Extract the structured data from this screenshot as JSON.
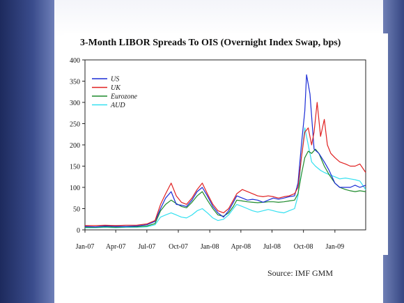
{
  "slide": {
    "source_text": "Source: IMF GMM"
  },
  "chart_data": {
    "type": "line",
    "title": "3-Month LIBOR Spreads To OIS (Overnight Index Swap, bps)",
    "xlabel": "",
    "ylabel": "",
    "ylim": [
      0,
      400
    ],
    "yticks": [
      0,
      50,
      100,
      150,
      200,
      250,
      300,
      350,
      400
    ],
    "xlim": [
      "2007-01-01",
      "2009-04-01"
    ],
    "xticks": [
      {
        "date": "2007-01-01",
        "label": "Jan-07"
      },
      {
        "date": "2007-04-01",
        "label": "Apr-07"
      },
      {
        "date": "2007-07-01",
        "label": "Jul-07"
      },
      {
        "date": "2007-10-01",
        "label": "Oct-07"
      },
      {
        "date": "2008-01-01",
        "label": "Jan-08"
      },
      {
        "date": "2008-04-01",
        "label": "Apr-08"
      },
      {
        "date": "2008-07-01",
        "label": "Jul-08"
      },
      {
        "date": "2008-10-01",
        "label": "Oct-08"
      },
      {
        "date": "2009-01-01",
        "label": "Jan-09"
      }
    ],
    "legend": "top-left",
    "grid": false,
    "series": [
      {
        "name": "US",
        "color": "#1a2bd6",
        "points": [
          [
            "2007-01-01",
            8
          ],
          [
            "2007-02-01",
            7
          ],
          [
            "2007-03-01",
            9
          ],
          [
            "2007-04-01",
            8
          ],
          [
            "2007-05-01",
            8
          ],
          [
            "2007-06-01",
            9
          ],
          [
            "2007-07-01",
            12
          ],
          [
            "2007-07-25",
            20
          ],
          [
            "2007-08-10",
            50
          ],
          [
            "2007-08-25",
            75
          ],
          [
            "2007-09-10",
            90
          ],
          [
            "2007-09-25",
            60
          ],
          [
            "2007-10-10",
            58
          ],
          [
            "2007-10-25",
            55
          ],
          [
            "2007-11-10",
            70
          ],
          [
            "2007-11-25",
            90
          ],
          [
            "2007-12-10",
            100
          ],
          [
            "2007-12-25",
            80
          ],
          [
            "2008-01-10",
            55
          ],
          [
            "2008-01-25",
            40
          ],
          [
            "2008-02-10",
            30
          ],
          [
            "2008-02-25",
            45
          ],
          [
            "2008-03-10",
            65
          ],
          [
            "2008-03-20",
            80
          ],
          [
            "2008-04-05",
            75
          ],
          [
            "2008-04-20",
            70
          ],
          [
            "2008-05-05",
            72
          ],
          [
            "2008-05-20",
            70
          ],
          [
            "2008-06-05",
            65
          ],
          [
            "2008-06-20",
            70
          ],
          [
            "2008-07-05",
            75
          ],
          [
            "2008-07-20",
            72
          ],
          [
            "2008-08-05",
            75
          ],
          [
            "2008-08-20",
            78
          ],
          [
            "2008-09-05",
            80
          ],
          [
            "2008-09-15",
            110
          ],
          [
            "2008-09-25",
            200
          ],
          [
            "2008-10-05",
            280
          ],
          [
            "2008-10-10",
            365
          ],
          [
            "2008-10-20",
            320
          ],
          [
            "2008-11-01",
            190
          ],
          [
            "2008-11-15",
            180
          ],
          [
            "2008-12-01",
            160
          ],
          [
            "2008-12-15",
            140
          ],
          [
            "2009-01-01",
            110
          ],
          [
            "2009-01-15",
            100
          ],
          [
            "2009-02-01",
            100
          ],
          [
            "2009-02-15",
            100
          ],
          [
            "2009-03-01",
            105
          ],
          [
            "2009-03-15",
            100
          ],
          [
            "2009-04-01",
            105
          ]
        ]
      },
      {
        "name": "UK",
        "color": "#e02020",
        "points": [
          [
            "2007-01-01",
            10
          ],
          [
            "2007-02-01",
            10
          ],
          [
            "2007-03-01",
            11
          ],
          [
            "2007-04-01",
            10
          ],
          [
            "2007-05-01",
            11
          ],
          [
            "2007-06-01",
            11
          ],
          [
            "2007-07-01",
            14
          ],
          [
            "2007-07-25",
            22
          ],
          [
            "2007-08-10",
            60
          ],
          [
            "2007-08-25",
            85
          ],
          [
            "2007-09-10",
            110
          ],
          [
            "2007-09-25",
            80
          ],
          [
            "2007-10-10",
            65
          ],
          [
            "2007-10-25",
            60
          ],
          [
            "2007-11-10",
            75
          ],
          [
            "2007-11-25",
            95
          ],
          [
            "2007-12-10",
            110
          ],
          [
            "2007-12-25",
            85
          ],
          [
            "2008-01-10",
            60
          ],
          [
            "2008-01-25",
            45
          ],
          [
            "2008-02-10",
            40
          ],
          [
            "2008-02-25",
            50
          ],
          [
            "2008-03-10",
            70
          ],
          [
            "2008-03-20",
            85
          ],
          [
            "2008-04-05",
            95
          ],
          [
            "2008-04-20",
            90
          ],
          [
            "2008-05-05",
            85
          ],
          [
            "2008-05-20",
            80
          ],
          [
            "2008-06-05",
            78
          ],
          [
            "2008-06-20",
            80
          ],
          [
            "2008-07-05",
            78
          ],
          [
            "2008-07-20",
            75
          ],
          [
            "2008-08-05",
            78
          ],
          [
            "2008-08-20",
            80
          ],
          [
            "2008-09-05",
            85
          ],
          [
            "2008-09-15",
            100
          ],
          [
            "2008-09-25",
            170
          ],
          [
            "2008-10-05",
            230
          ],
          [
            "2008-10-15",
            240
          ],
          [
            "2008-10-25",
            200
          ],
          [
            "2008-11-01",
            230
          ],
          [
            "2008-11-10",
            300
          ],
          [
            "2008-11-20",
            220
          ],
          [
            "2008-12-01",
            260
          ],
          [
            "2008-12-10",
            200
          ],
          [
            "2008-12-20",
            180
          ],
          [
            "2009-01-01",
            170
          ],
          [
            "2009-01-15",
            160
          ],
          [
            "2009-02-01",
            155
          ],
          [
            "2009-02-15",
            150
          ],
          [
            "2009-03-01",
            150
          ],
          [
            "2009-03-15",
            155
          ],
          [
            "2009-04-01",
            135
          ]
        ]
      },
      {
        "name": "Eurozone",
        "color": "#1c8a2a",
        "points": [
          [
            "2007-01-01",
            6
          ],
          [
            "2007-02-01",
            6
          ],
          [
            "2007-03-01",
            7
          ],
          [
            "2007-04-01",
            6
          ],
          [
            "2007-05-01",
            7
          ],
          [
            "2007-06-01",
            7
          ],
          [
            "2007-07-01",
            9
          ],
          [
            "2007-07-25",
            15
          ],
          [
            "2007-08-10",
            45
          ],
          [
            "2007-08-25",
            60
          ],
          [
            "2007-09-10",
            70
          ],
          [
            "2007-09-25",
            62
          ],
          [
            "2007-10-10",
            55
          ],
          [
            "2007-10-25",
            52
          ],
          [
            "2007-11-10",
            65
          ],
          [
            "2007-11-25",
            80
          ],
          [
            "2007-12-10",
            90
          ],
          [
            "2007-12-25",
            70
          ],
          [
            "2008-01-10",
            50
          ],
          [
            "2008-01-25",
            35
          ],
          [
            "2008-02-10",
            32
          ],
          [
            "2008-02-25",
            40
          ],
          [
            "2008-03-10",
            55
          ],
          [
            "2008-03-20",
            70
          ],
          [
            "2008-04-05",
            68
          ],
          [
            "2008-04-20",
            66
          ],
          [
            "2008-05-05",
            65
          ],
          [
            "2008-05-20",
            64
          ],
          [
            "2008-06-05",
            65
          ],
          [
            "2008-06-20",
            66
          ],
          [
            "2008-07-05",
            66
          ],
          [
            "2008-07-20",
            65
          ],
          [
            "2008-08-05",
            66
          ],
          [
            "2008-08-20",
            68
          ],
          [
            "2008-09-05",
            70
          ],
          [
            "2008-09-15",
            85
          ],
          [
            "2008-09-25",
            130
          ],
          [
            "2008-10-05",
            170
          ],
          [
            "2008-10-15",
            185
          ],
          [
            "2008-10-25",
            180
          ],
          [
            "2008-11-05",
            190
          ],
          [
            "2008-11-15",
            180
          ],
          [
            "2008-12-01",
            150
          ],
          [
            "2008-12-15",
            130
          ],
          [
            "2009-01-01",
            110
          ],
          [
            "2009-01-15",
            100
          ],
          [
            "2009-02-01",
            95
          ],
          [
            "2009-02-15",
            92
          ],
          [
            "2009-03-01",
            90
          ],
          [
            "2009-03-15",
            92
          ],
          [
            "2009-04-01",
            90
          ]
        ]
      },
      {
        "name": "AUD",
        "color": "#33e0f0",
        "points": [
          [
            "2007-01-01",
            5
          ],
          [
            "2007-02-01",
            5
          ],
          [
            "2007-03-01",
            6
          ],
          [
            "2007-04-01",
            5
          ],
          [
            "2007-05-01",
            6
          ],
          [
            "2007-06-01",
            6
          ],
          [
            "2007-07-01",
            7
          ],
          [
            "2007-07-25",
            12
          ],
          [
            "2007-08-10",
            30
          ],
          [
            "2007-08-25",
            35
          ],
          [
            "2007-09-10",
            40
          ],
          [
            "2007-09-25",
            35
          ],
          [
            "2007-10-10",
            30
          ],
          [
            "2007-10-25",
            28
          ],
          [
            "2007-11-10",
            35
          ],
          [
            "2007-11-25",
            45
          ],
          [
            "2007-12-10",
            50
          ],
          [
            "2007-12-25",
            40
          ],
          [
            "2008-01-10",
            28
          ],
          [
            "2008-01-25",
            22
          ],
          [
            "2008-02-10",
            25
          ],
          [
            "2008-02-25",
            35
          ],
          [
            "2008-03-10",
            50
          ],
          [
            "2008-03-20",
            60
          ],
          [
            "2008-04-05",
            55
          ],
          [
            "2008-04-20",
            50
          ],
          [
            "2008-05-05",
            45
          ],
          [
            "2008-05-20",
            42
          ],
          [
            "2008-06-05",
            45
          ],
          [
            "2008-06-20",
            48
          ],
          [
            "2008-07-05",
            45
          ],
          [
            "2008-07-20",
            42
          ],
          [
            "2008-08-05",
            40
          ],
          [
            "2008-08-20",
            45
          ],
          [
            "2008-09-05",
            50
          ],
          [
            "2008-09-15",
            80
          ],
          [
            "2008-09-25",
            170
          ],
          [
            "2008-10-05",
            240
          ],
          [
            "2008-10-15",
            200
          ],
          [
            "2008-10-25",
            160
          ],
          [
            "2008-11-05",
            150
          ],
          [
            "2008-11-20",
            140
          ],
          [
            "2008-12-01",
            135
          ],
          [
            "2008-12-15",
            130
          ],
          [
            "2009-01-01",
            125
          ],
          [
            "2009-01-15",
            120
          ],
          [
            "2009-02-01",
            122
          ],
          [
            "2009-02-15",
            120
          ],
          [
            "2009-03-01",
            118
          ],
          [
            "2009-03-15",
            115
          ],
          [
            "2009-04-01",
            95
          ]
        ]
      }
    ]
  }
}
